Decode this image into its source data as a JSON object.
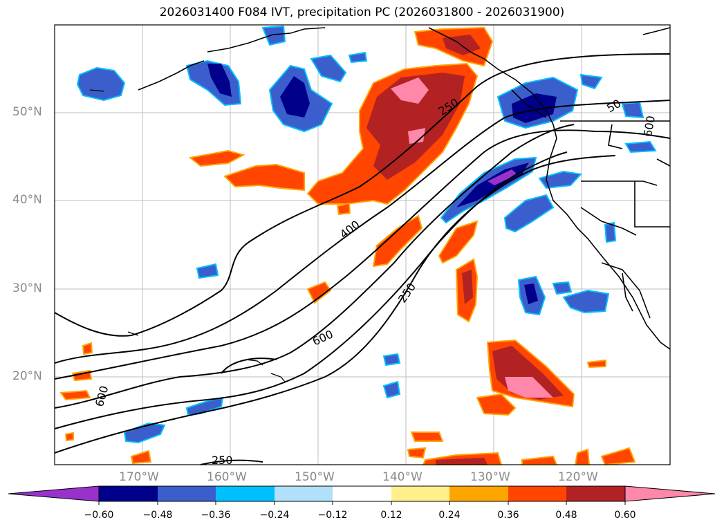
{
  "title": "2026031400 F084 IVT, precipitation PC (2026031800 - 2026031900)",
  "map": {
    "lat_labels": [
      "50°N",
      "40°N",
      "30°N",
      "20°N"
    ],
    "lon_labels": [
      "170°W",
      "160°W",
      "150°W",
      "140°W",
      "130°W",
      "120°W"
    ],
    "contour_labels": [
      "250",
      "400",
      "250",
      "600",
      "600",
      "250",
      "50",
      "600"
    ]
  },
  "colorbar": {
    "ticks": [
      "−0.60",
      "−0.48",
      "−0.36",
      "−0.24",
      "−0.12",
      "0.12",
      "0.24",
      "0.36",
      "0.48",
      "0.60"
    ],
    "colors": [
      "#9932cc",
      "#00008b",
      "#3a5fcd",
      "#00bfff",
      "#b0e0fa",
      "#ffffff",
      "#fff08c",
      "#ffa500",
      "#ff4500",
      "#b22222",
      "#ff88aa"
    ]
  },
  "colors": {
    "purple": "#9932cc",
    "navy": "#00008b",
    "royal": "#3a5fcd",
    "cyan": "#00bfff",
    "lightblue": "#b0e0fa",
    "lightyellow": "#fff08c",
    "orange": "#ffa500",
    "orangered": "#ff4500",
    "firebrick": "#b22222",
    "pink": "#ff88aa"
  }
}
